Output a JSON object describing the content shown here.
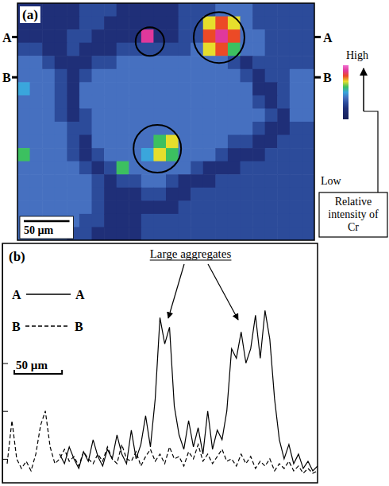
{
  "chart_data": [
    {
      "type": "heatmap",
      "panel_label": "(a)",
      "xlim": [
        0,
        325
      ],
      "ylim": [
        0,
        259
      ],
      "tick_labels": false,
      "cells": [
        [
          2,
          2,
          2,
          2,
          2,
          3,
          3,
          3,
          2,
          2,
          2,
          2,
          2,
          3,
          3,
          3,
          4,
          4,
          4,
          3,
          3,
          3,
          3,
          3
        ],
        [
          2,
          2,
          2,
          2,
          2,
          3,
          3,
          2,
          2,
          2,
          2,
          2,
          2,
          3,
          3,
          7,
          8,
          7,
          4,
          3,
          3,
          3,
          3,
          3
        ],
        [
          2,
          2,
          2,
          2,
          3,
          3,
          2,
          2,
          2,
          2,
          9,
          2,
          2,
          3,
          3,
          8,
          9,
          8,
          4,
          4,
          3,
          3,
          3,
          3
        ],
        [
          3,
          3,
          2,
          2,
          3,
          2,
          2,
          2,
          3,
          3,
          3,
          3,
          3,
          3,
          4,
          7,
          8,
          6,
          4,
          4,
          3,
          3,
          3,
          3
        ],
        [
          4,
          4,
          3,
          2,
          2,
          2,
          3,
          3,
          4,
          4,
          4,
          4,
          4,
          4,
          4,
          4,
          4,
          3,
          2,
          3,
          3,
          3,
          3,
          3
        ],
        [
          4,
          4,
          4,
          3,
          2,
          3,
          4,
          4,
          4,
          4,
          4,
          4,
          4,
          4,
          4,
          4,
          4,
          4,
          3,
          2,
          3,
          3,
          4,
          4
        ],
        [
          5,
          4,
          4,
          3,
          2,
          4,
          4,
          4,
          4,
          4,
          4,
          4,
          4,
          4,
          4,
          4,
          4,
          4,
          4,
          2,
          2,
          3,
          4,
          4
        ],
        [
          4,
          4,
          4,
          3,
          2,
          4,
          4,
          4,
          4,
          4,
          4,
          4,
          4,
          4,
          4,
          4,
          4,
          4,
          4,
          3,
          2,
          3,
          4,
          4
        ],
        [
          4,
          4,
          4,
          3,
          2,
          3,
          4,
          4,
          4,
          4,
          4,
          4,
          4,
          4,
          4,
          4,
          4,
          4,
          4,
          4,
          3,
          2,
          4,
          4
        ],
        [
          4,
          4,
          4,
          4,
          3,
          3,
          4,
          4,
          4,
          4,
          4,
          4,
          4,
          4,
          4,
          4,
          4,
          4,
          4,
          3,
          2,
          2,
          3,
          3
        ],
        [
          4,
          4,
          4,
          4,
          3,
          2,
          4,
          4,
          4,
          4,
          4,
          6,
          7,
          4,
          4,
          4,
          4,
          3,
          3,
          2,
          2,
          3,
          3,
          3
        ],
        [
          6,
          4,
          4,
          4,
          3,
          2,
          3,
          4,
          4,
          4,
          5,
          7,
          6,
          4,
          4,
          4,
          3,
          2,
          2,
          2,
          3,
          3,
          3,
          3
        ],
        [
          4,
          4,
          4,
          4,
          4,
          3,
          2,
          3,
          6,
          4,
          4,
          4,
          4,
          4,
          3,
          2,
          2,
          2,
          3,
          3,
          3,
          3,
          3,
          3
        ],
        [
          4,
          4,
          4,
          4,
          4,
          4,
          3,
          2,
          3,
          3,
          4,
          4,
          3,
          2,
          2,
          2,
          3,
          3,
          3,
          3,
          3,
          3,
          3,
          3
        ],
        [
          4,
          4,
          4,
          4,
          4,
          4,
          3,
          2,
          2,
          2,
          3,
          3,
          2,
          2,
          3,
          3,
          3,
          3,
          3,
          3,
          3,
          3,
          3,
          3
        ],
        [
          4,
          4,
          4,
          4,
          4,
          4,
          3,
          2,
          2,
          2,
          2,
          2,
          2,
          3,
          3,
          3,
          3,
          3,
          3,
          3,
          3,
          3,
          3,
          3
        ],
        [
          4,
          4,
          4,
          4,
          4,
          3,
          3,
          2,
          2,
          2,
          3,
          3,
          3,
          3,
          3,
          3,
          3,
          3,
          3,
          3,
          3,
          3,
          3,
          3
        ],
        [
          4,
          4,
          4,
          4,
          3,
          3,
          2,
          2,
          2,
          2,
          3,
          3,
          3,
          3,
          3,
          3,
          3,
          3,
          3,
          3,
          3,
          3,
          3,
          3
        ]
      ],
      "colorbar": {
        "range": [
          0,
          10
        ],
        "high_label": "High",
        "low_label": "Low",
        "title": "Relative intensity of Cr"
      },
      "profiles": [
        {
          "name": "A",
          "y": 37
        },
        {
          "name": "B",
          "y": 81
        }
      ],
      "scale_bar": {
        "value": 50,
        "label": "50 µm"
      }
    },
    {
      "type": "line",
      "panel_label": "(b)",
      "annotation": "Large aggregates",
      "x": [
        0,
        5,
        10,
        15,
        20,
        25,
        30,
        35,
        40,
        45,
        50,
        55,
        60,
        65,
        70,
        75,
        80,
        85,
        90,
        95,
        100,
        105,
        110,
        115,
        120,
        125,
        130,
        135,
        140,
        145,
        150,
        155,
        160,
        165,
        170,
        175,
        180,
        185,
        190,
        195,
        200,
        205,
        210,
        215,
        220,
        225,
        230,
        235,
        240,
        245,
        250,
        255,
        260,
        265,
        270,
        275,
        280,
        285,
        290,
        295,
        300,
        305,
        310,
        315,
        320,
        325,
        330
      ],
      "xlim": [
        0,
        330
      ],
      "ylim": [
        0,
        10
      ],
      "yticks": [
        1,
        3,
        5
      ],
      "tick_labels": false,
      "legend": "upper left",
      "series": [
        {
          "name": "A",
          "color": "#000000",
          "line_style": "solid",
          "values": [
            null,
            null,
            null,
            null,
            null,
            null,
            null,
            null,
            null,
            null,
            null,
            null,
            1.2,
            0.8,
            1.5,
            1.0,
            0.6,
            1.3,
            0.9,
            1.8,
            1.1,
            0.7,
            1.4,
            1.0,
            2.0,
            1.2,
            0.8,
            2.2,
            1.0,
            1.6,
            2.8,
            1.5,
            3.5,
            6.9,
            5.8,
            6.5,
            3.2,
            2.0,
            1.4,
            2.6,
            1.5,
            2.3,
            1.2,
            3.0,
            1.4,
            2.2,
            1.8,
            3.0,
            5.6,
            5.2,
            6.3,
            5.0,
            5.6,
            7.0,
            5.2,
            7.2,
            6.0,
            3.5,
            1.8,
            1.0,
            1.6,
            0.8,
            1.2,
            0.6,
            0.9,
            0.5,
            0.7
          ]
        },
        {
          "name": "B",
          "color": "#000000",
          "line_style": "dashed",
          "values": [
            null,
            0.8,
            2.6,
            1.0,
            0.6,
            0.9,
            0.5,
            1.2,
            2.4,
            3.0,
            1.5,
            0.8,
            1.0,
            1.4,
            0.9,
            1.1,
            0.7,
            1.3,
            1.0,
            0.8,
            1.2,
            0.9,
            1.5,
            1.0,
            0.8,
            1.6,
            1.0,
            0.9,
            1.3,
            0.7,
            1.1,
            1.4,
            0.9,
            1.2,
            0.8,
            1.5,
            1.0,
            1.1,
            0.7,
            1.3,
            1.0,
            1.6,
            0.9,
            1.2,
            0.8,
            1.1,
            1.4,
            0.9,
            1.0,
            0.7,
            1.2,
            0.8,
            1.1,
            0.6,
            0.9,
            0.7,
            1.0,
            0.5,
            0.8,
            0.6,
            0.9,
            0.5,
            0.7,
            0.4,
            0.6,
            0.4,
            0.5
          ]
        }
      ],
      "scale_bar": {
        "value": 50,
        "label": "50 µm"
      }
    }
  ]
}
